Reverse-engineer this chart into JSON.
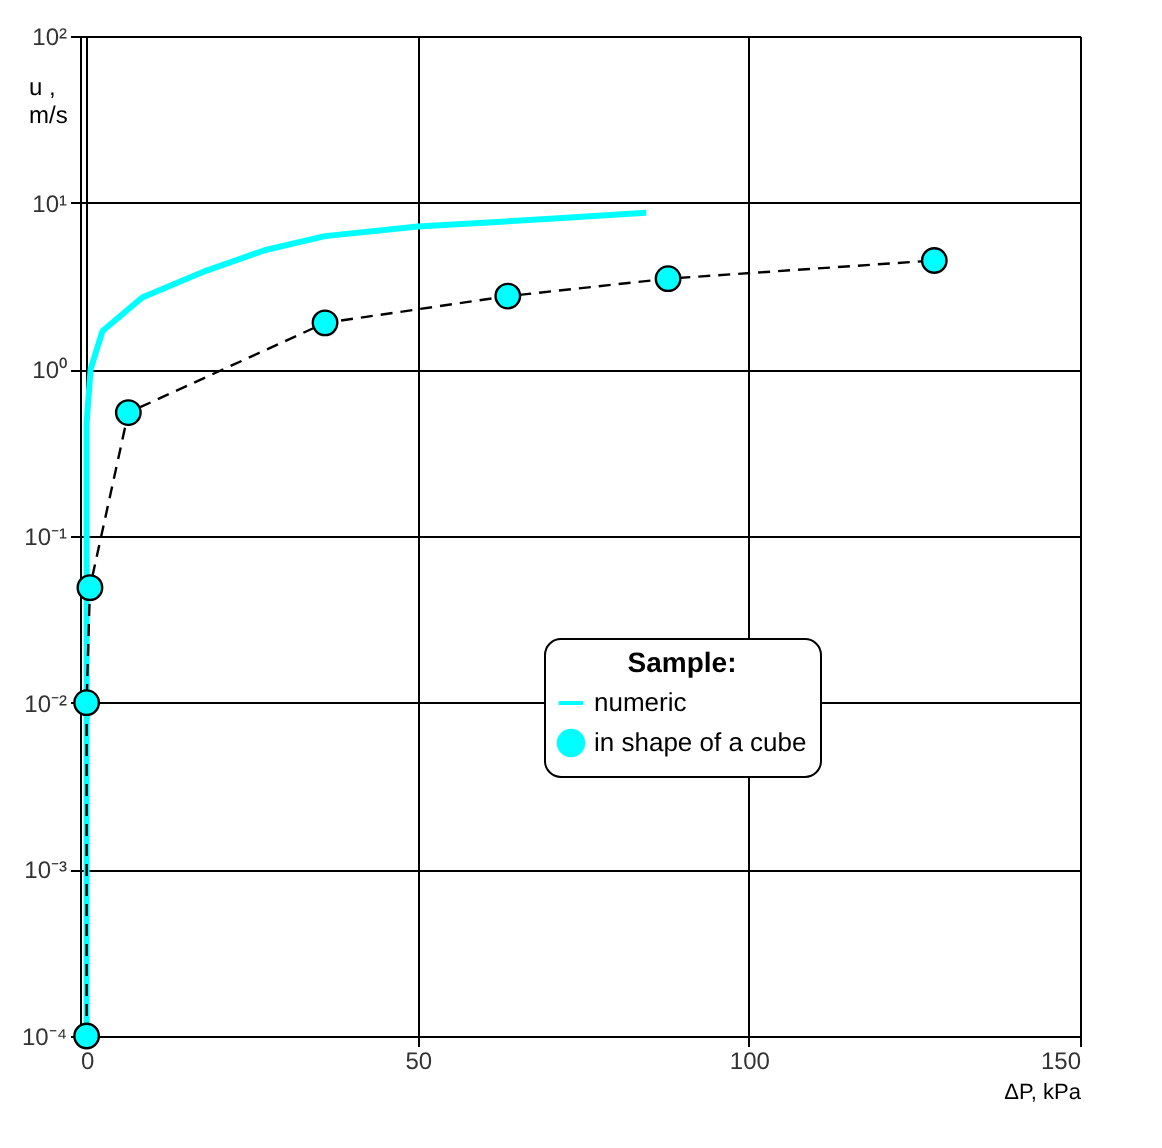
{
  "chart_data": {
    "type": "line",
    "xlabel": "ΔP, kPa",
    "ylabel": "u , m/s",
    "legend_title": "Sample:",
    "xlim": [
      -1,
      150
    ],
    "xticks": [
      0,
      50,
      100,
      150
    ],
    "ylim": [
      0.0001,
      100
    ],
    "log": true,
    "yticks": [
      {
        "value": 0.0001,
        "label": "10⁻⁴"
      },
      {
        "value": 0.001,
        "label": "10⁻³"
      },
      {
        "value": 0.01,
        "label": "10⁻²"
      },
      {
        "value": 0.1,
        "label": "10⁻¹"
      },
      {
        "value": 1,
        "label": "10⁰"
      },
      {
        "value": 10,
        "label": "10¹"
      },
      {
        "value": 100,
        "label": "10²"
      }
    ],
    "grid": true,
    "legend": "bottom right",
    "series": [
      {
        "name": "numeric",
        "color": "#00ffff",
        "marker": "none",
        "line_style": "solid",
        "x": [
          0,
          0,
          0.6,
          2.4,
          8.4,
          18,
          27,
          36,
          50,
          70,
          84.5
        ],
        "values": [
          0.0001,
          0.48,
          1.0,
          1.7,
          2.7,
          3.9,
          5.2,
          6.3,
          7.2,
          8.0,
          8.7
        ]
      },
      {
        "name": "in shape of a cube",
        "color": "#00ffff",
        "marker": "circle",
        "line_style": "dashed",
        "x": [
          0,
          0,
          0.5,
          6.3,
          36,
          63.6,
          87.8,
          128
        ],
        "values": [
          0.0001,
          0.01,
          0.049,
          0.55,
          1.9,
          2.75,
          3.5,
          4.5
        ]
      }
    ]
  }
}
